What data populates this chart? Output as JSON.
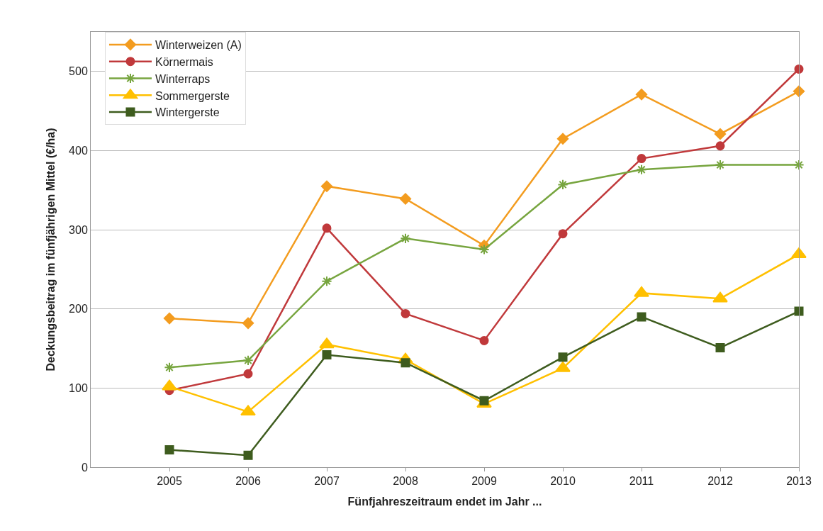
{
  "chart_data": {
    "type": "line",
    "xlabel": "Fünfjahreszeitraum endet im Jahr ...",
    "ylabel": "Deckungsbeitrag im fünfjährigen Mittel (€/ha)",
    "x": [
      2005,
      2006,
      2007,
      2008,
      2009,
      2010,
      2011,
      2012,
      2013
    ],
    "xlim": [
      2004,
      2013
    ],
    "xticks": [
      2005,
      2006,
      2007,
      2008,
      2009,
      2010,
      2011,
      2012,
      2013
    ],
    "ylim": [
      0,
      550
    ],
    "yticks": [
      0,
      100,
      200,
      300,
      400,
      500
    ],
    "grid": "y",
    "legend": "top left",
    "series": [
      {
        "name": "Winterweizen (A)",
        "color": "#f39c1f",
        "marker": "diamond",
        "values": [
          188,
          182,
          355,
          339,
          280,
          415,
          471,
          421,
          475
        ]
      },
      {
        "name": "Körnermais",
        "color": "#c0393b",
        "marker": "circle",
        "values": [
          97,
          118,
          302,
          194,
          160,
          295,
          390,
          406,
          503
        ]
      },
      {
        "name": "Winterraps",
        "color": "#77a53f",
        "marker": "cross",
        "values": [
          126,
          135,
          235,
          289,
          275,
          357,
          376,
          382,
          382
        ]
      },
      {
        "name": "Sommergerste",
        "color": "#ffc000",
        "marker": "triangle",
        "values": [
          102,
          70,
          155,
          136,
          80,
          125,
          220,
          213,
          269
        ]
      },
      {
        "name": "Wintergerste",
        "color": "#3e5c1e",
        "marker": "square",
        "values": [
          22,
          15,
          142,
          132,
          84,
          139,
          190,
          151,
          197
        ]
      }
    ]
  }
}
